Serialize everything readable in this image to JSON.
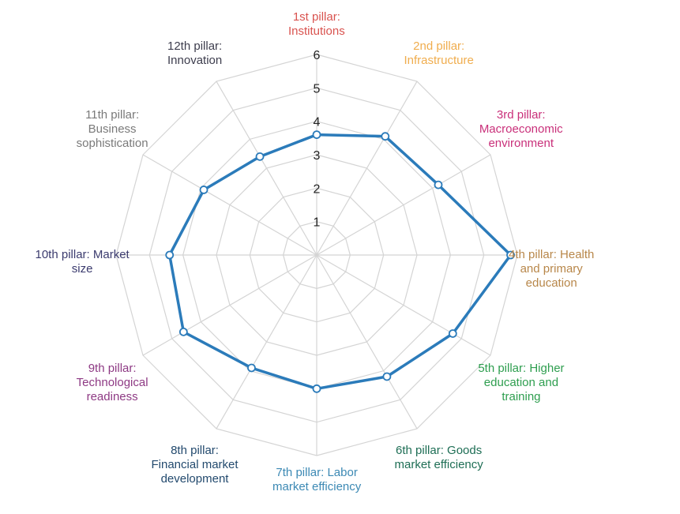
{
  "chart_data": {
    "type": "radar",
    "categories": [
      "1st pillar:\nInstitutions",
      "2nd pillar:\nInfrastructure",
      "3rd pillar:\nMacroeconomic\nenvironment",
      "4th pillar: Health\nand primary\neducation",
      "5th pillar: Higher\neducation and\ntraining",
      "6th pillar: Goods\nmarket efficiency",
      "7th pillar: Labor\nmarket efficiency",
      "8th pillar:\nFinancial market\ndevelopment",
      "9th pillar:\nTechnological\nreadiness",
      "10th pillar: Market\nsize",
      "11th pillar:\nBusiness\nsophistication",
      "12th pillar:\nInnovation"
    ],
    "category_colors": [
      "#d9534f",
      "#f0ad4e",
      "#c9307a",
      "#b8874a",
      "#2e9e4f",
      "#1e6e55",
      "#3c89b4",
      "#234a6e",
      "#8e3a84",
      "#3b3b6e",
      "#7a7a7a",
      "#3d3d4d"
    ],
    "values": [
      3.6,
      4.1,
      4.2,
      5.8,
      4.7,
      4.2,
      4.0,
      3.9,
      4.6,
      4.4,
      3.9,
      3.4
    ],
    "tick_labels": [
      "1",
      "2",
      "3",
      "4",
      "5",
      "6"
    ],
    "rlim": [
      0,
      6
    ],
    "series_color": "#2b7bba",
    "grid": true,
    "grid_shape": "polygon"
  }
}
